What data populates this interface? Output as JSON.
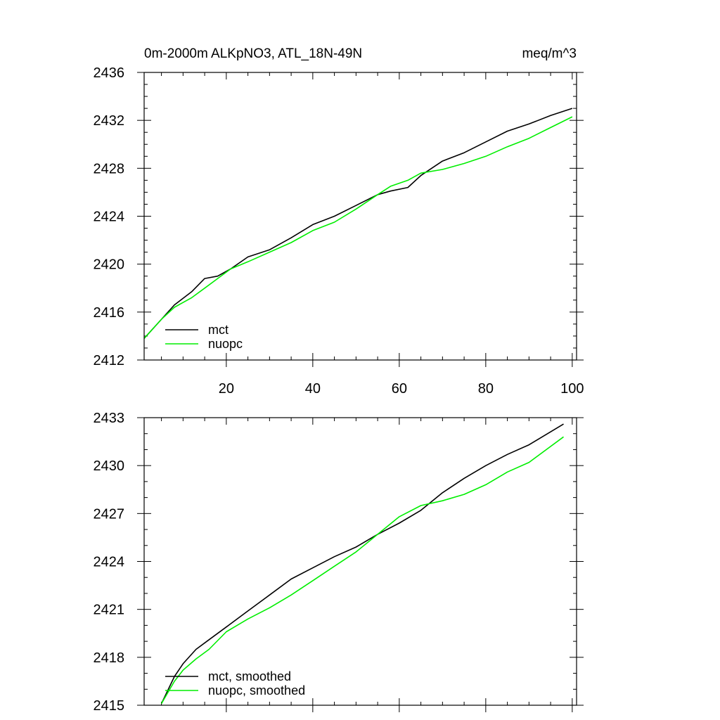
{
  "colors": {
    "mct": "#000000",
    "nuopc": "#00ee00",
    "frame": "#000000",
    "background": "#ffffff"
  },
  "chart_data": [
    {
      "type": "line",
      "title_left": "0m-2000m ALKpNO3, ATL_18N-49N",
      "title_right": "meq/m^3",
      "xlim": [
        1,
        101
      ],
      "ylim": [
        2412,
        2436
      ],
      "xticks": [
        20,
        40,
        60,
        80,
        100
      ],
      "xtick_labels": [
        "20",
        "40",
        "60",
        "80",
        "100"
      ],
      "yticks": [
        2412,
        2416,
        2420,
        2424,
        2428,
        2432,
        2436
      ],
      "ytick_labels": [
        "2412",
        "2416",
        "2420",
        "2424",
        "2428",
        "2432",
        "2436"
      ],
      "legend_position": "bottom-left",
      "series": [
        {
          "name": "mct",
          "color": "#000000",
          "x": [
            1,
            5,
            8,
            12,
            15,
            18,
            21,
            25,
            30,
            35,
            40,
            45,
            50,
            55,
            58,
            62,
            65,
            70,
            75,
            80,
            85,
            90,
            95,
            100
          ],
          "y": [
            2413.8,
            2415.4,
            2416.6,
            2417.7,
            2418.8,
            2419.0,
            2419.6,
            2420.6,
            2421.2,
            2422.2,
            2423.3,
            2424.0,
            2424.9,
            2425.8,
            2426.1,
            2426.4,
            2427.4,
            2428.6,
            2429.3,
            2430.2,
            2431.1,
            2431.7,
            2432.4,
            2433.0
          ]
        },
        {
          "name": "nuopc",
          "color": "#00ee00",
          "x": [
            1,
            5,
            8,
            12,
            15,
            18,
            21,
            25,
            30,
            35,
            40,
            45,
            50,
            55,
            58,
            62,
            65,
            70,
            75,
            80,
            85,
            90,
            95,
            100
          ],
          "y": [
            2413.8,
            2415.4,
            2416.4,
            2417.2,
            2418.0,
            2418.8,
            2419.6,
            2420.2,
            2421.0,
            2421.8,
            2422.8,
            2423.5,
            2424.6,
            2425.8,
            2426.5,
            2427.0,
            2427.6,
            2427.9,
            2428.4,
            2429.0,
            2429.8,
            2430.5,
            2431.4,
            2432.3
          ]
        }
      ]
    },
    {
      "type": "line",
      "xlim": [
        1,
        101
      ],
      "ylim": [
        2415,
        2433
      ],
      "xticks": [
        20,
        40,
        60,
        80,
        100
      ],
      "yticks": [
        2415,
        2418,
        2421,
        2424,
        2427,
        2430,
        2433
      ],
      "ytick_labels": [
        "2415",
        "2418",
        "2421",
        "2424",
        "2427",
        "2430",
        "2433"
      ],
      "legend_position": "bottom-left",
      "series": [
        {
          "name": "mct, smoothed",
          "color": "#000000",
          "x": [
            5,
            8,
            10,
            13,
            16,
            20,
            25,
            30,
            35,
            40,
            45,
            50,
            55,
            60,
            65,
            70,
            75,
            80,
            85,
            90,
            98
          ],
          "y": [
            2415.1,
            2416.8,
            2417.6,
            2418.5,
            2419.1,
            2419.9,
            2420.9,
            2421.9,
            2422.9,
            2423.6,
            2424.3,
            2424.9,
            2425.7,
            2426.4,
            2427.2,
            2428.3,
            2429.2,
            2430.0,
            2430.7,
            2431.3,
            2432.6
          ]
        },
        {
          "name": "nuopc, smoothed",
          "color": "#00ee00",
          "x": [
            5,
            8,
            10,
            13,
            16,
            20,
            25,
            30,
            35,
            40,
            45,
            50,
            55,
            60,
            65,
            70,
            75,
            80,
            85,
            90,
            98
          ],
          "y": [
            2415.1,
            2416.5,
            2417.2,
            2417.9,
            2418.5,
            2419.6,
            2420.4,
            2421.1,
            2421.9,
            2422.8,
            2423.7,
            2424.6,
            2425.7,
            2426.8,
            2427.5,
            2427.8,
            2428.2,
            2428.8,
            2429.6,
            2430.2,
            2431.8
          ]
        }
      ]
    }
  ]
}
